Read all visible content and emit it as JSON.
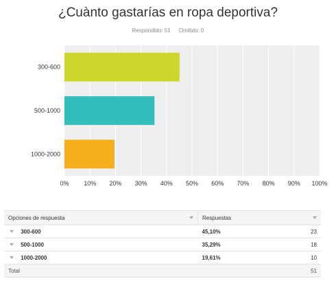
{
  "header": {
    "title": "¿Cuànto gastarías en ropa deportiva?",
    "answered_label": "Respondido: 51",
    "skipped_label": "Omitido: 0"
  },
  "chart_data": {
    "type": "bar",
    "orientation": "horizontal",
    "categories": [
      "300-600",
      "500-1000",
      "1000-2000"
    ],
    "values": [
      45.1,
      35.29,
      19.61
    ],
    "xlim": [
      0,
      100
    ],
    "xticks": [
      "0%",
      "10%",
      "20%",
      "30%",
      "40%",
      "50%",
      "60%",
      "70%",
      "80%",
      "90%",
      "100%"
    ],
    "colors": [
      "#cdd62a",
      "#32bfbc",
      "#f7ae1d"
    ],
    "plot_background": "#eeeeee",
    "grid": true
  },
  "table": {
    "headers": [
      "Opciones de respuesta",
      "Respuestas"
    ],
    "rows": [
      {
        "label": "300-600",
        "percent": "45,10%",
        "count": "23"
      },
      {
        "label": "500-1000",
        "percent": "35,29%",
        "count": "18"
      },
      {
        "label": "1000-2000",
        "percent": "19,61%",
        "count": "10"
      }
    ],
    "total_label": "Total",
    "total_value": "51"
  }
}
